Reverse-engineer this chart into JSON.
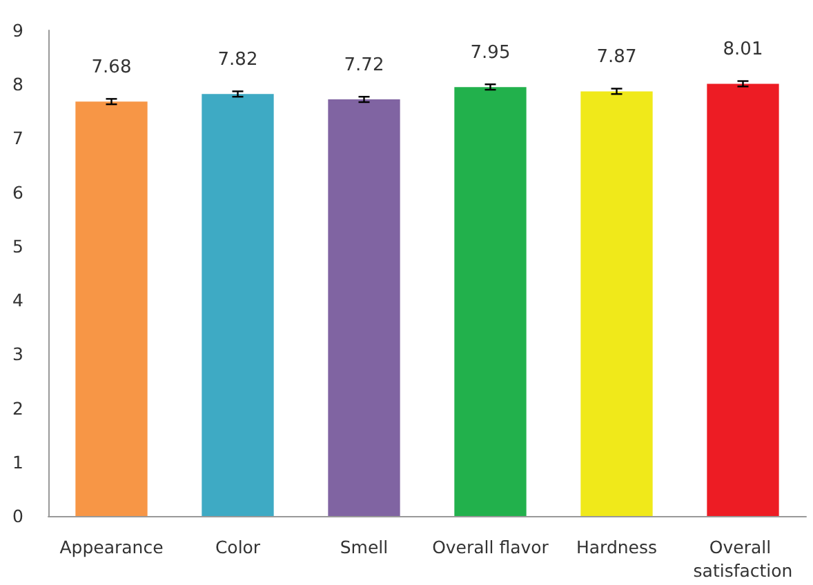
{
  "chart_data": {
    "type": "bar",
    "categories": [
      "Appearance",
      "Color",
      "Smell",
      "Overall flavor",
      "Hardness",
      "Overall satisfaction"
    ],
    "values": [
      7.68,
      7.82,
      7.72,
      7.95,
      7.87,
      8.01
    ],
    "colors": [
      "#f79646",
      "#3eaac4",
      "#8064a2",
      "#22b14c",
      "#f0e91a",
      "#ed1c24"
    ],
    "errors": [
      0.05,
      0.05,
      0.05,
      0.05,
      0.05,
      0.05
    ],
    "data_labels": true,
    "ylim": [
      0,
      9
    ],
    "yticks": [
      0,
      1,
      2,
      3,
      4,
      5,
      6,
      7,
      8,
      9
    ],
    "grid": false
  }
}
